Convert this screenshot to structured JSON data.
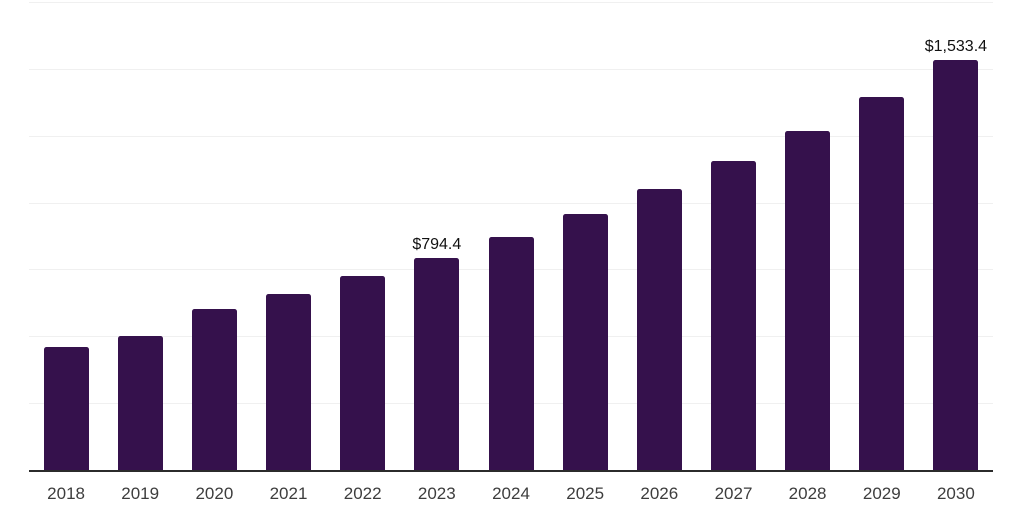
{
  "chart_data": {
    "type": "bar",
    "categories": [
      "2018",
      "2019",
      "2020",
      "2021",
      "2022",
      "2023",
      "2024",
      "2025",
      "2026",
      "2027",
      "2028",
      "2029",
      "2030"
    ],
    "values": [
      459,
      502,
      602,
      660,
      724,
      794.4,
      873,
      959,
      1052,
      1157,
      1269,
      1395,
      1533.4
    ],
    "point_labels": [
      null,
      null,
      null,
      null,
      null,
      "$794.4",
      null,
      null,
      null,
      null,
      null,
      null,
      "$1,533.4"
    ],
    "title": "",
    "xlabel": "",
    "ylabel": "",
    "ylim": [
      0,
      1750
    ],
    "gridline_step": 250,
    "grid": true,
    "legend": false,
    "colors": {
      "bar": "#35114C",
      "axis": "#2b2b2b",
      "gridline": "#f0f0f0",
      "value_label": "#111111",
      "tick_label": "#3d3d3d",
      "background": "#ffffff"
    }
  }
}
